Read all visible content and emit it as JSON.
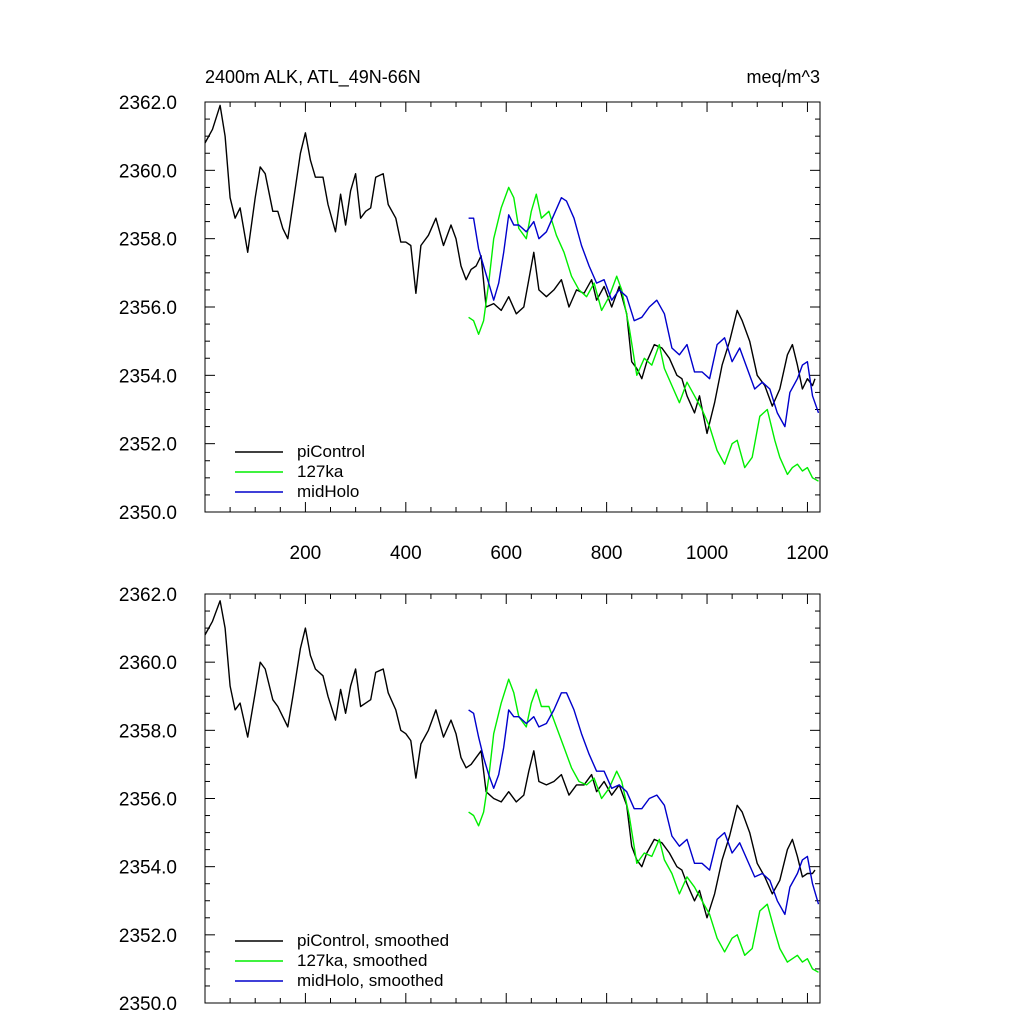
{
  "chart_data": [
    {
      "type": "line",
      "title": "2400m ALK, ATL_49N-66N",
      "units": "meq/m^3",
      "xlim": [
        0,
        1225
      ],
      "ylim": [
        2350,
        2362
      ],
      "yticks": [
        "2350.0",
        "2352.0",
        "2354.0",
        "2356.0",
        "2358.0",
        "2360.0",
        "2362.0"
      ],
      "xticks": [
        "200",
        "400",
        "600",
        "800",
        "1000",
        "1200"
      ],
      "legend_position": "bottom-left",
      "series": [
        {
          "name": "piControl",
          "color": "#000000",
          "x": [
            0,
            15,
            30,
            40,
            50,
            60,
            70,
            85,
            100,
            110,
            120,
            135,
            145,
            155,
            165,
            175,
            190,
            200,
            210,
            220,
            235,
            245,
            260,
            270,
            280,
            290,
            300,
            310,
            320,
            330,
            340,
            355,
            365,
            380,
            390,
            400,
            410,
            420,
            430,
            445,
            460,
            475,
            490,
            500,
            510,
            520,
            530,
            540,
            550,
            560,
            575,
            590,
            605,
            620,
            635,
            645,
            655,
            665,
            680,
            695,
            710,
            725,
            740,
            755,
            770,
            780,
            795,
            810,
            825,
            840,
            850,
            860,
            870,
            880,
            895,
            910,
            925,
            940,
            950,
            960,
            975,
            985,
            1000,
            1015,
            1030,
            1045,
            1060,
            1070,
            1085,
            1100,
            1115,
            1130,
            1145,
            1160,
            1170,
            1180,
            1190,
            1200,
            1210,
            1215
          ],
          "y": [
            2360.8,
            2361.2,
            2361.9,
            2361.0,
            2359.2,
            2358.6,
            2358.9,
            2357.6,
            2359.2,
            2360.1,
            2359.9,
            2358.8,
            2358.8,
            2358.3,
            2358.0,
            2359.0,
            2360.5,
            2361.1,
            2360.3,
            2359.8,
            2359.8,
            2359.0,
            2358.2,
            2359.3,
            2358.4,
            2359.4,
            2359.9,
            2358.6,
            2358.8,
            2358.9,
            2359.8,
            2359.9,
            2359.0,
            2358.6,
            2357.9,
            2357.9,
            2357.8,
            2356.4,
            2357.8,
            2358.1,
            2358.6,
            2357.8,
            2358.4,
            2358.0,
            2357.2,
            2356.8,
            2357.1,
            2357.2,
            2357.5,
            2356.0,
            2356.1,
            2355.9,
            2356.3,
            2355.8,
            2356.0,
            2356.8,
            2357.6,
            2356.5,
            2356.3,
            2356.5,
            2356.8,
            2356.0,
            2356.5,
            2356.4,
            2356.8,
            2356.2,
            2356.6,
            2356.0,
            2356.6,
            2355.8,
            2354.4,
            2354.2,
            2353.9,
            2354.4,
            2354.9,
            2354.8,
            2354.5,
            2354.0,
            2353.9,
            2353.4,
            2352.9,
            2353.4,
            2352.3,
            2353.2,
            2354.3,
            2355.0,
            2355.9,
            2355.6,
            2355.0,
            2354.0,
            2353.7,
            2353.1,
            2353.6,
            2354.6,
            2354.9,
            2354.3,
            2353.6,
            2353.9,
            2353.7,
            2353.9
          ]
        },
        {
          "name": "127ka",
          "color": "#00ee00",
          "x": [
            525,
            535,
            545,
            555,
            565,
            575,
            590,
            605,
            615,
            625,
            640,
            650,
            660,
            670,
            685,
            700,
            715,
            730,
            745,
            760,
            775,
            790,
            805,
            820,
            830,
            845,
            860,
            875,
            890,
            905,
            915,
            930,
            945,
            960,
            975,
            990,
            1005,
            1020,
            1035,
            1050,
            1060,
            1075,
            1090,
            1105,
            1120,
            1135,
            1145,
            1160,
            1170,
            1180,
            1190,
            1200,
            1210,
            1222
          ],
          "y": [
            2355.7,
            2355.6,
            2355.2,
            2355.6,
            2356.7,
            2358.0,
            2358.9,
            2359.5,
            2359.2,
            2358.3,
            2358.0,
            2358.8,
            2359.3,
            2358.6,
            2358.8,
            2358.1,
            2357.6,
            2356.9,
            2356.5,
            2356.3,
            2356.7,
            2355.9,
            2356.3,
            2356.9,
            2356.5,
            2355.4,
            2354.0,
            2354.5,
            2354.3,
            2354.9,
            2354.2,
            2353.7,
            2353.2,
            2353.8,
            2353.4,
            2353.0,
            2352.5,
            2351.8,
            2351.4,
            2352.0,
            2352.1,
            2351.3,
            2351.6,
            2352.8,
            2353.0,
            2352.1,
            2351.6,
            2351.1,
            2351.3,
            2351.4,
            2351.2,
            2351.3,
            2351.0,
            2350.9
          ]
        },
        {
          "name": "midHolo",
          "color": "#0000cc",
          "x": [
            525,
            535,
            545,
            555,
            565,
            575,
            585,
            595,
            605,
            615,
            625,
            640,
            655,
            665,
            680,
            695,
            710,
            720,
            735,
            750,
            765,
            780,
            795,
            810,
            825,
            840,
            855,
            870,
            885,
            900,
            915,
            930,
            945,
            960,
            975,
            990,
            1005,
            1020,
            1035,
            1050,
            1065,
            1080,
            1095,
            1110,
            1125,
            1140,
            1155,
            1165,
            1180,
            1190,
            1200,
            1210,
            1222
          ],
          "y": [
            2358.6,
            2358.6,
            2357.7,
            2357.2,
            2356.7,
            2356.2,
            2356.7,
            2357.6,
            2358.7,
            2358.4,
            2358.4,
            2358.2,
            2358.5,
            2358.0,
            2358.2,
            2358.7,
            2359.2,
            2359.1,
            2358.6,
            2357.8,
            2357.2,
            2356.7,
            2356.8,
            2356.2,
            2356.5,
            2356.3,
            2355.6,
            2355.7,
            2356.0,
            2356.2,
            2355.8,
            2354.8,
            2354.6,
            2354.9,
            2354.1,
            2354.1,
            2353.9,
            2354.9,
            2355.1,
            2354.4,
            2354.8,
            2354.2,
            2353.6,
            2353.8,
            2353.6,
            2352.9,
            2352.5,
            2353.5,
            2353.9,
            2354.3,
            2354.4,
            2353.4,
            2352.9
          ]
        }
      ]
    },
    {
      "type": "line",
      "title": "",
      "xlim": [
        0,
        1225
      ],
      "ylim": [
        2350,
        2362
      ],
      "yticks": [
        "2350.0",
        "2352.0",
        "2354.0",
        "2356.0",
        "2358.0",
        "2360.0",
        "2362.0"
      ],
      "legend_position": "bottom-left",
      "series": [
        {
          "name": "piControl, smoothed",
          "color": "#000000",
          "x": [
            0,
            15,
            30,
            40,
            50,
            60,
            70,
            85,
            100,
            110,
            120,
            135,
            145,
            155,
            165,
            175,
            190,
            200,
            210,
            220,
            235,
            245,
            260,
            270,
            280,
            290,
            300,
            310,
            320,
            330,
            340,
            355,
            365,
            380,
            390,
            400,
            410,
            420,
            430,
            445,
            460,
            475,
            490,
            500,
            510,
            520,
            530,
            540,
            550,
            560,
            575,
            590,
            605,
            620,
            635,
            645,
            655,
            665,
            680,
            695,
            710,
            725,
            740,
            755,
            770,
            780,
            795,
            810,
            825,
            840,
            850,
            860,
            870,
            880,
            895,
            910,
            925,
            940,
            950,
            960,
            975,
            985,
            1000,
            1015,
            1030,
            1045,
            1060,
            1070,
            1085,
            1100,
            1115,
            1130,
            1145,
            1160,
            1170,
            1180,
            1190,
            1200,
            1210,
            1215
          ],
          "y": [
            2360.8,
            2361.2,
            2361.8,
            2361.0,
            2359.3,
            2358.6,
            2358.8,
            2357.8,
            2359.1,
            2360.0,
            2359.8,
            2358.9,
            2358.7,
            2358.4,
            2358.1,
            2359.0,
            2360.4,
            2361.0,
            2360.2,
            2359.8,
            2359.6,
            2359.0,
            2358.3,
            2359.2,
            2358.5,
            2359.3,
            2359.8,
            2358.7,
            2358.8,
            2358.9,
            2359.7,
            2359.8,
            2359.1,
            2358.6,
            2358.0,
            2357.9,
            2357.7,
            2356.6,
            2357.6,
            2358.0,
            2358.6,
            2357.8,
            2358.3,
            2357.9,
            2357.2,
            2356.9,
            2357.0,
            2357.2,
            2357.4,
            2356.2,
            2356.0,
            2355.9,
            2356.2,
            2355.9,
            2356.1,
            2356.8,
            2357.4,
            2356.5,
            2356.4,
            2356.5,
            2356.7,
            2356.1,
            2356.4,
            2356.4,
            2356.7,
            2356.2,
            2356.5,
            2356.1,
            2356.4,
            2355.8,
            2354.6,
            2354.2,
            2354.0,
            2354.4,
            2354.8,
            2354.7,
            2354.4,
            2354.0,
            2353.9,
            2353.5,
            2353.0,
            2353.3,
            2352.5,
            2353.2,
            2354.2,
            2354.9,
            2355.8,
            2355.6,
            2355.0,
            2354.1,
            2353.7,
            2353.2,
            2353.6,
            2354.5,
            2354.8,
            2354.3,
            2353.7,
            2353.8,
            2353.8,
            2353.9
          ]
        },
        {
          "name": "127ka, smoothed",
          "color": "#00ee00",
          "x": [
            525,
            535,
            545,
            555,
            565,
            575,
            590,
            605,
            615,
            625,
            640,
            650,
            660,
            670,
            685,
            700,
            715,
            730,
            745,
            760,
            775,
            790,
            805,
            820,
            830,
            845,
            860,
            875,
            890,
            905,
            915,
            930,
            945,
            960,
            975,
            990,
            1005,
            1020,
            1035,
            1050,
            1060,
            1075,
            1090,
            1105,
            1120,
            1135,
            1145,
            1160,
            1170,
            1180,
            1190,
            1200,
            1210,
            1222
          ],
          "y": [
            2355.6,
            2355.5,
            2355.2,
            2355.6,
            2356.6,
            2357.9,
            2358.8,
            2359.5,
            2359.1,
            2358.4,
            2358.1,
            2358.8,
            2359.2,
            2358.7,
            2358.7,
            2358.1,
            2357.5,
            2356.9,
            2356.5,
            2356.4,
            2356.6,
            2356.0,
            2356.3,
            2356.8,
            2356.5,
            2355.5,
            2354.1,
            2354.4,
            2354.3,
            2354.8,
            2354.2,
            2353.8,
            2353.2,
            2353.7,
            2353.4,
            2353.0,
            2352.6,
            2351.9,
            2351.5,
            2351.9,
            2352.0,
            2351.4,
            2351.6,
            2352.7,
            2352.9,
            2352.1,
            2351.6,
            2351.2,
            2351.3,
            2351.4,
            2351.2,
            2351.3,
            2351.0,
            2350.9
          ]
        },
        {
          "name": "midHolo, smoothed",
          "color": "#0000cc",
          "x": [
            525,
            535,
            545,
            555,
            565,
            575,
            585,
            595,
            605,
            615,
            625,
            640,
            655,
            665,
            680,
            695,
            710,
            720,
            735,
            750,
            765,
            780,
            795,
            810,
            825,
            840,
            855,
            870,
            885,
            900,
            915,
            930,
            945,
            960,
            975,
            990,
            1005,
            1020,
            1035,
            1050,
            1065,
            1080,
            1095,
            1110,
            1125,
            1140,
            1155,
            1165,
            1180,
            1190,
            1200,
            1210,
            1222
          ],
          "y": [
            2358.6,
            2358.5,
            2357.8,
            2357.2,
            2356.7,
            2356.3,
            2356.7,
            2357.5,
            2358.6,
            2358.4,
            2358.4,
            2358.2,
            2358.4,
            2358.1,
            2358.2,
            2358.6,
            2359.1,
            2359.1,
            2358.6,
            2357.9,
            2357.3,
            2356.8,
            2356.8,
            2356.3,
            2356.4,
            2356.2,
            2355.7,
            2355.7,
            2356.0,
            2356.1,
            2355.8,
            2354.9,
            2354.6,
            2354.8,
            2354.1,
            2354.1,
            2353.9,
            2354.8,
            2355.0,
            2354.4,
            2354.7,
            2354.2,
            2353.7,
            2353.8,
            2353.6,
            2353.0,
            2352.6,
            2353.4,
            2353.8,
            2354.2,
            2354.3,
            2353.5,
            2352.9
          ]
        }
      ]
    }
  ]
}
